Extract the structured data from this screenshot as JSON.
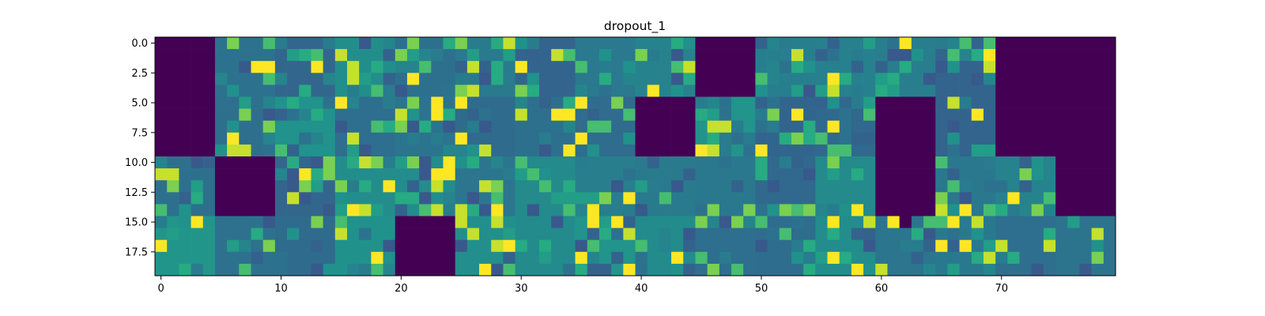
{
  "chart_data": {
    "type": "heatmap",
    "title": "dropout_1",
    "xlabel": "",
    "ylabel": "",
    "colormap": "viridis",
    "n_cols": 80,
    "n_rows": 20,
    "xlim": [
      -0.5,
      79.5
    ],
    "ylim": [
      19.5,
      -0.5
    ],
    "x_ticks": [
      0,
      10,
      20,
      30,
      40,
      50,
      60,
      70
    ],
    "x_tick_labels": [
      "0",
      "10",
      "20",
      "30",
      "40",
      "50",
      "60",
      "70"
    ],
    "y_ticks": [
      0.0,
      2.5,
      5.0,
      7.5,
      10.0,
      12.5,
      15.0,
      17.5
    ],
    "y_tick_labels": [
      "0.0",
      "2.5",
      "5.0",
      "7.5",
      "10.0",
      "12.5",
      "15.0",
      "17.5"
    ],
    "grid": false,
    "legend": "none",
    "dropped_blocks": [
      {
        "rows": [
          0,
          9
        ],
        "cols": [
          0,
          4
        ]
      },
      {
        "rows": [
          0,
          4
        ],
        "cols": [
          45,
          49
        ]
      },
      {
        "rows": [
          0,
          9
        ],
        "cols": [
          70,
          79
        ]
      },
      {
        "rows": [
          5,
          9
        ],
        "cols": [
          40,
          44
        ]
      },
      {
        "rows": [
          5,
          14
        ],
        "cols": [
          60,
          64
        ]
      },
      {
        "rows": [
          10,
          14
        ],
        "cols": [
          5,
          9
        ]
      },
      {
        "rows": [
          10,
          14
        ],
        "cols": [
          75,
          79
        ]
      },
      {
        "rows": [
          15,
          19
        ],
        "cols": [
          20,
          24
        ]
      },
      {
        "rows": [
          15,
          15
        ],
        "cols": [
          62,
          62
        ]
      }
    ],
    "approximate": true
  }
}
